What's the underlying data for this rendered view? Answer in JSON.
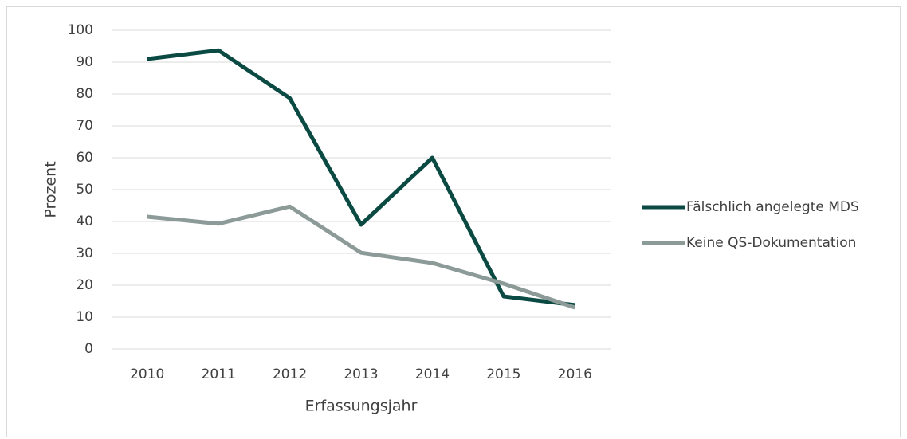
{
  "chart_data": {
    "type": "line",
    "categories": [
      "2010",
      "2011",
      "2012",
      "2013",
      "2014",
      "2015",
      "2016"
    ],
    "series": [
      {
        "name": "Fälschlich angelegte MDS",
        "color": "#0b4a43",
        "values": [
          91,
          93.7,
          78.7,
          39,
          60,
          16.5,
          13.8
        ]
      },
      {
        "name": "Keine QS-Dokumentation",
        "color": "#8c9b98",
        "values": [
          41.5,
          39.3,
          44.7,
          30.2,
          27,
          20.5,
          13
        ]
      }
    ],
    "ylabel": "Prozent",
    "xlabel": "Erfassungsjahr",
    "ylim": [
      0,
      100
    ],
    "yticks": [
      0,
      10,
      20,
      30,
      40,
      50,
      60,
      70,
      80,
      90,
      100
    ],
    "grid": true,
    "legend": "right"
  }
}
